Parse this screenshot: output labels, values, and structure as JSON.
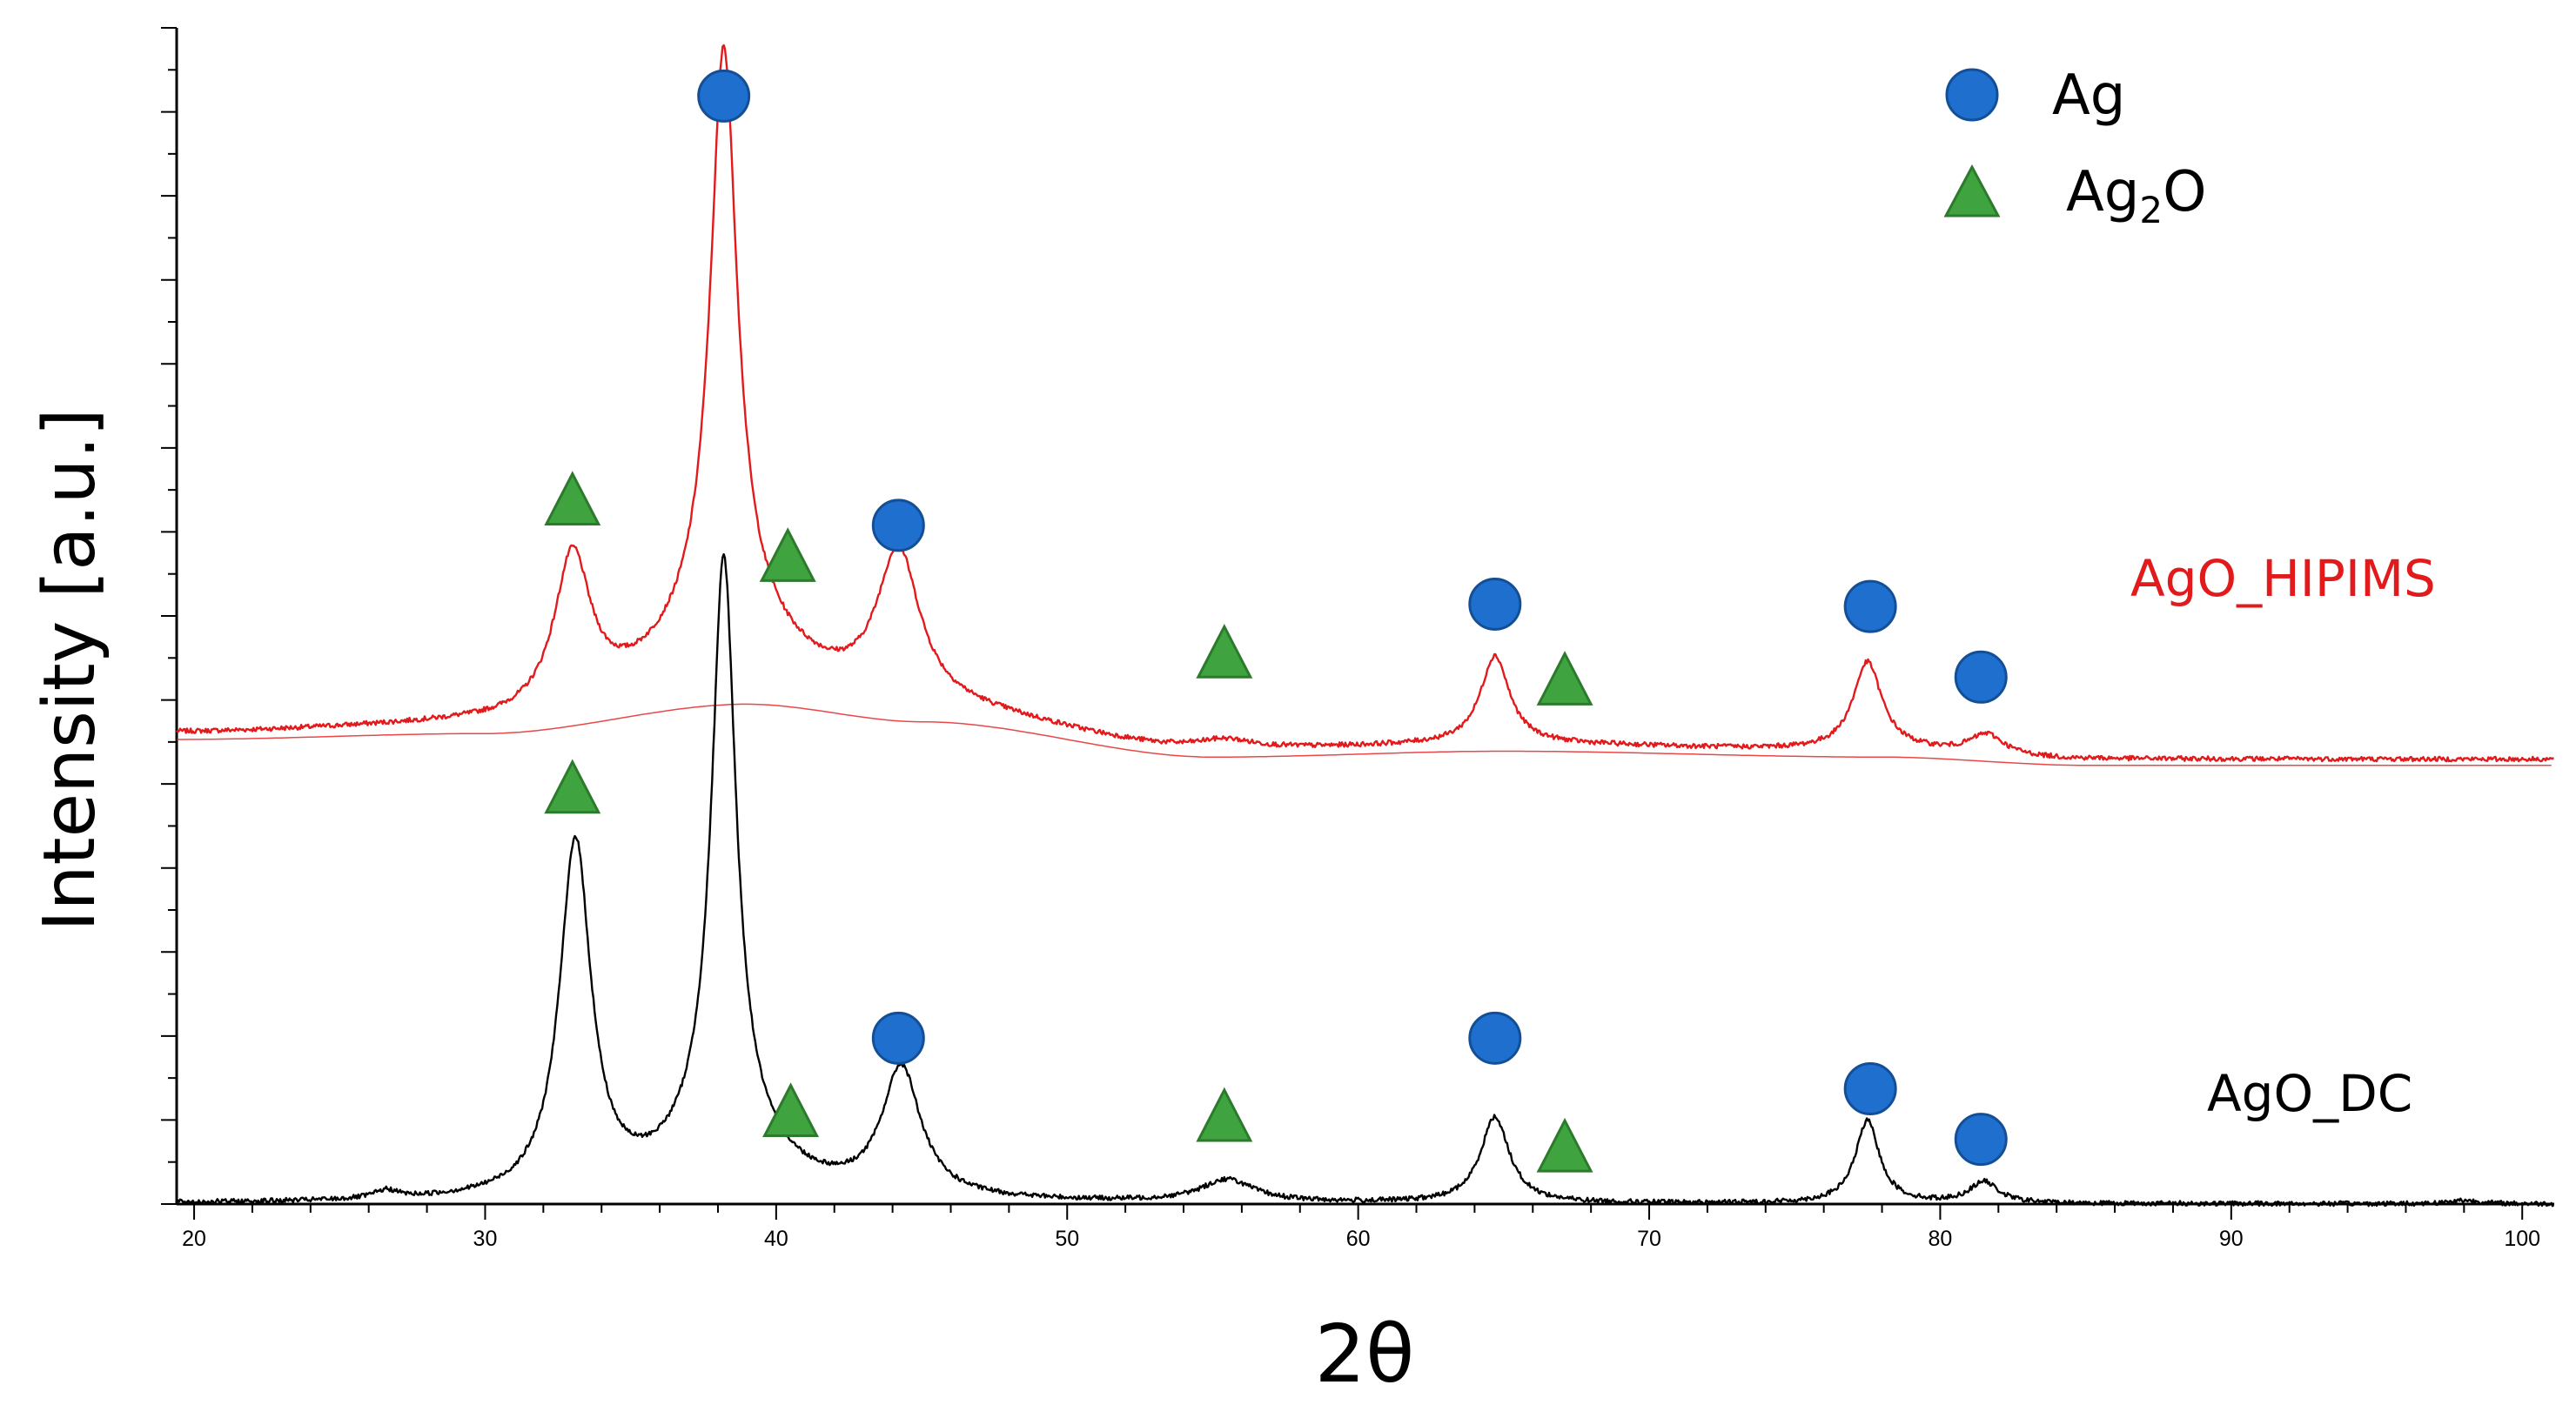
{
  "chart_data": {
    "type": "line",
    "title": "",
    "xlabel": "2θ",
    "ylabel": "Intensity [a.u.]",
    "xlim": [
      19.4,
      101.1
    ],
    "x_ticks": [
      "20",
      "30",
      "40",
      "50",
      "60",
      "70",
      "80",
      "90",
      "100"
    ],
    "y_tick_labels": false,
    "grid": false,
    "legend": {
      "placement": "top-right",
      "entries": [
        {
          "marker": "circle",
          "color": "#1f6fcf",
          "label": "Ag",
          "subscript": ""
        },
        {
          "marker": "triangle",
          "color": "#3fa33f",
          "label": "Ag",
          "subscript": "2",
          "label_suffix": "O"
        }
      ]
    },
    "series": [
      {
        "name": "AgO_HIPIMS",
        "color": "#e31a1c",
        "baseline_level": 0.39,
        "background_hump": [
          [
            19.4,
            0.4
          ],
          [
            30,
            0.405
          ],
          [
            39,
            0.43
          ],
          [
            45,
            0.415
          ],
          [
            55,
            0.385
          ],
          [
            65,
            0.39
          ],
          [
            78,
            0.385
          ],
          [
            85,
            0.378
          ],
          [
            101,
            0.378
          ]
        ],
        "peaks": [
          {
            "center": 33.0,
            "height": 0.129,
            "width": 0.75
          },
          {
            "center": 38.2,
            "height": 0.48,
            "width": 0.55
          },
          {
            "center": 38.2,
            "height": 0.07,
            "width": 2.4
          },
          {
            "center": 44.2,
            "height": 0.13,
            "width": 0.9
          },
          {
            "center": 55.4,
            "height": 0.008,
            "width": 1.2
          },
          {
            "center": 64.7,
            "height": 0.075,
            "width": 0.6
          },
          {
            "center": 77.5,
            "height": 0.075,
            "width": 0.6
          },
          {
            "center": 81.6,
            "height": 0.017,
            "width": 0.7
          }
        ],
        "markers": [
          {
            "x": 33.0,
            "y": 0.598,
            "type": "triangle"
          },
          {
            "x": 38.2,
            "y": 0.942,
            "type": "circle"
          },
          {
            "x": 40.4,
            "y": 0.55,
            "type": "triangle"
          },
          {
            "x": 44.2,
            "y": 0.577,
            "type": "circle"
          },
          {
            "x": 55.4,
            "y": 0.468,
            "type": "triangle"
          },
          {
            "x": 64.7,
            "y": 0.51,
            "type": "circle"
          },
          {
            "x": 67.1,
            "y": 0.445,
            "type": "triangle"
          },
          {
            "x": 77.6,
            "y": 0.508,
            "type": "circle"
          },
          {
            "x": 81.4,
            "y": 0.448,
            "type": "circle"
          }
        ]
      },
      {
        "name": "AgO_DC",
        "color": "#000000",
        "baseline_level": 0.0,
        "background_hump": [
          [
            19.4,
            0.0
          ],
          [
            101,
            0.0
          ]
        ],
        "peaks": [
          {
            "center": 26.6,
            "height": 0.007,
            "width": 0.5
          },
          {
            "center": 33.1,
            "height": 0.3,
            "width": 0.65
          },
          {
            "center": 38.2,
            "height": 0.485,
            "width": 0.5
          },
          {
            "center": 38.2,
            "height": 0.06,
            "width": 2.0
          },
          {
            "center": 44.3,
            "height": 0.109,
            "width": 0.8
          },
          {
            "center": 55.5,
            "height": 0.019,
            "width": 1.1
          },
          {
            "center": 64.7,
            "height": 0.073,
            "width": 0.6
          },
          {
            "center": 77.5,
            "height": 0.07,
            "width": 0.5
          },
          {
            "center": 81.5,
            "height": 0.018,
            "width": 0.6
          },
          {
            "center": 98.0,
            "height": 0.003,
            "width": 0.6
          }
        ],
        "markers": [
          {
            "x": 33.0,
            "y": 0.353,
            "type": "triangle"
          },
          {
            "x": 40.5,
            "y": 0.078,
            "type": "triangle"
          },
          {
            "x": 44.2,
            "y": 0.141,
            "type": "circle"
          },
          {
            "x": 55.4,
            "y": 0.074,
            "type": "triangle"
          },
          {
            "x": 64.7,
            "y": 0.141,
            "type": "circle"
          },
          {
            "x": 67.1,
            "y": 0.048,
            "type": "triangle"
          },
          {
            "x": 77.6,
            "y": 0.098,
            "type": "circle"
          },
          {
            "x": 81.4,
            "y": 0.055,
            "type": "circle"
          }
        ]
      }
    ],
    "series_labels": [
      {
        "text": "AgO_HIPIMS",
        "color": "#e31a1c"
      },
      {
        "text": "AgO_DC",
        "color": "#000000"
      }
    ]
  }
}
